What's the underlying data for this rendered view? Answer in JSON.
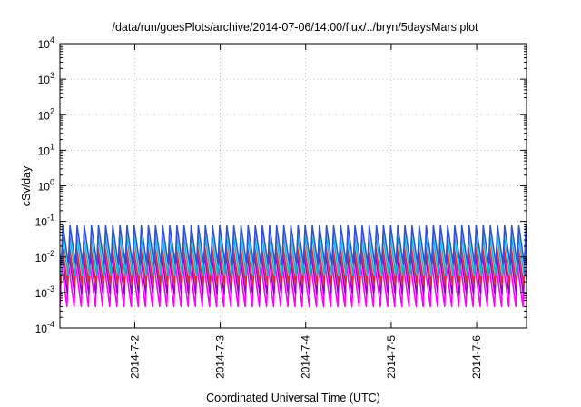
{
  "chart_data": {
    "type": "line",
    "title": "/data/run/goesPlots/archive/2014-07-06/14:00/flux/../bryn/5daysMars.plot",
    "xlabel": "Coordinated Universal Time (UTC)",
    "ylabel": "cSv/day",
    "y_scale": "log",
    "ylim": [
      0.0001,
      10000
    ],
    "xlim": [
      "2014-07-01T03:00",
      "2014-07-06T14:00"
    ],
    "y_ticks": [
      {
        "base": "10",
        "exp": "-4"
      },
      {
        "base": "10",
        "exp": "-3"
      },
      {
        "base": "10",
        "exp": "-2"
      },
      {
        "base": "10",
        "exp": "-1"
      },
      {
        "base": "10",
        "exp": "0"
      },
      {
        "base": "10",
        "exp": "1"
      },
      {
        "base": "10",
        "exp": "2"
      },
      {
        "base": "10",
        "exp": "3"
      },
      {
        "base": "10",
        "exp": "4"
      }
    ],
    "x_ticks": [
      "2014-7-2",
      "2014-7-3",
      "2014-7-4",
      "2014-7-5",
      "2014-7-6"
    ],
    "grid": true,
    "oscillation_period_hours": 2,
    "series": [
      {
        "color": "#ff00ff",
        "peak": 0.006,
        "trough": 0.0004
      },
      {
        "color": "#9400d3",
        "peak": 0.012,
        "trough": 0.0009
      },
      {
        "color": "#e8262a",
        "peak": 0.02,
        "trough": 0.0016
      },
      {
        "color": "#00bcd4",
        "peak": 0.04,
        "trough": 0.003
      },
      {
        "color": "#2f4fd8",
        "peak": 0.075,
        "trough": 0.006
      }
    ]
  }
}
